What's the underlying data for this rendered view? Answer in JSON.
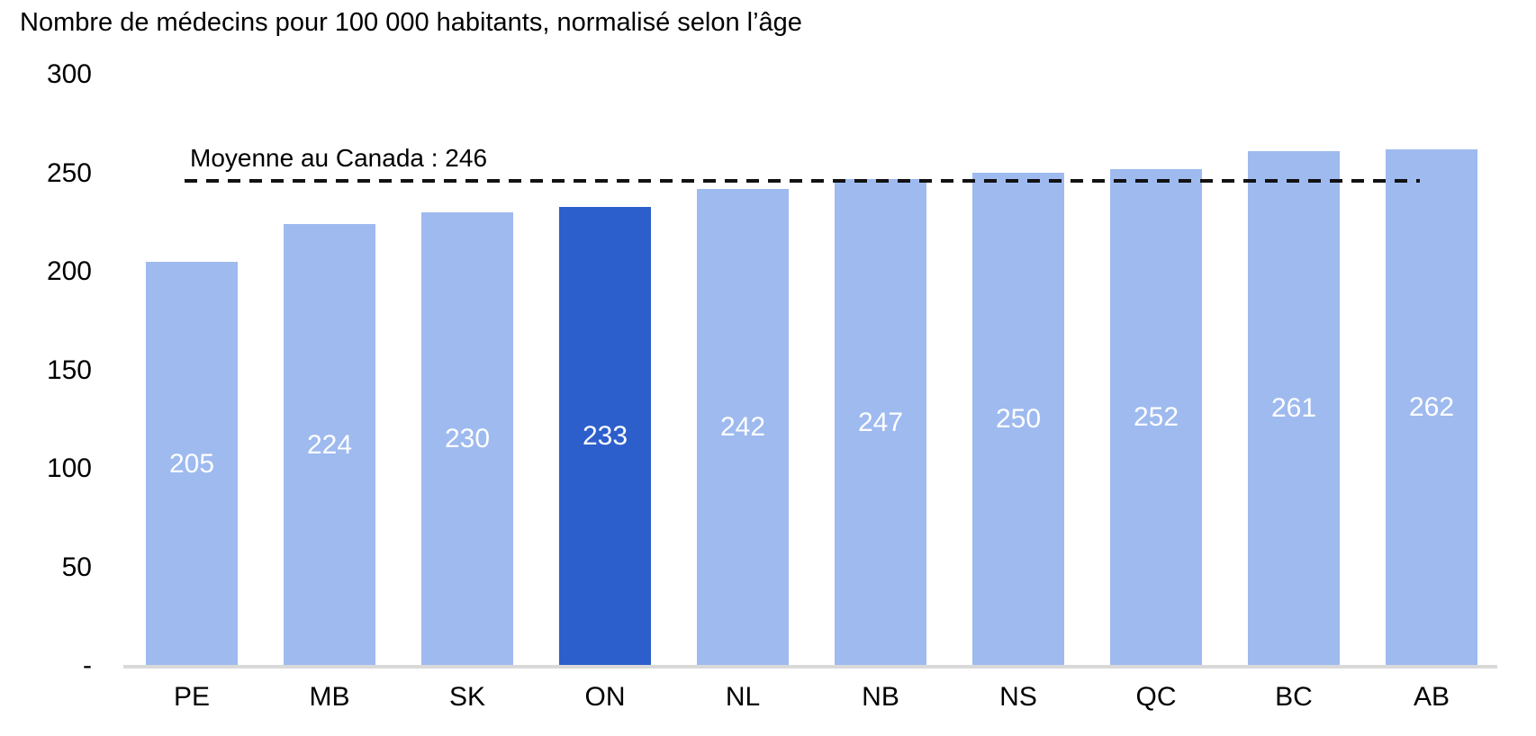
{
  "title": "Nombre de médecins pour 100 000 habitants, normalisé selon l’âge",
  "reference_line": {
    "label": "Moyenne au Canada : 246",
    "value": 246
  },
  "chart_data": {
    "type": "bar",
    "title": "Nombre de médecins pour 100 000 habitants, normalisé selon l’âge",
    "categories": [
      "PE",
      "MB",
      "SK",
      "ON",
      "NL",
      "NB",
      "NS",
      "QC",
      "BC",
      "AB"
    ],
    "values": [
      205,
      224,
      230,
      233,
      242,
      247,
      250,
      252,
      261,
      262
    ],
    "highlighted_category": "ON",
    "reference_line": {
      "label": "Moyenne au Canada : 246",
      "value": 246
    },
    "y_axis": {
      "range": [
        0,
        300
      ],
      "ticks": [
        {
          "value": 300,
          "label": "300"
        },
        {
          "value": 250,
          "label": "250"
        },
        {
          "value": 200,
          "label": "200"
        },
        {
          "value": 150,
          "label": "150"
        },
        {
          "value": 100,
          "label": "100"
        },
        {
          "value": 50,
          "label": "50"
        },
        {
          "value": 0,
          "label": "-"
        }
      ]
    },
    "grid": false,
    "legend": false,
    "value_labels_position": "inside-center",
    "colors": {
      "bar": "#9EBAEF",
      "highlight": "#2C5FCC",
      "value_label": "#FFFFFF",
      "reference_line": "#121212",
      "axis_line": "#D9D9D9",
      "text": "#000000"
    }
  }
}
